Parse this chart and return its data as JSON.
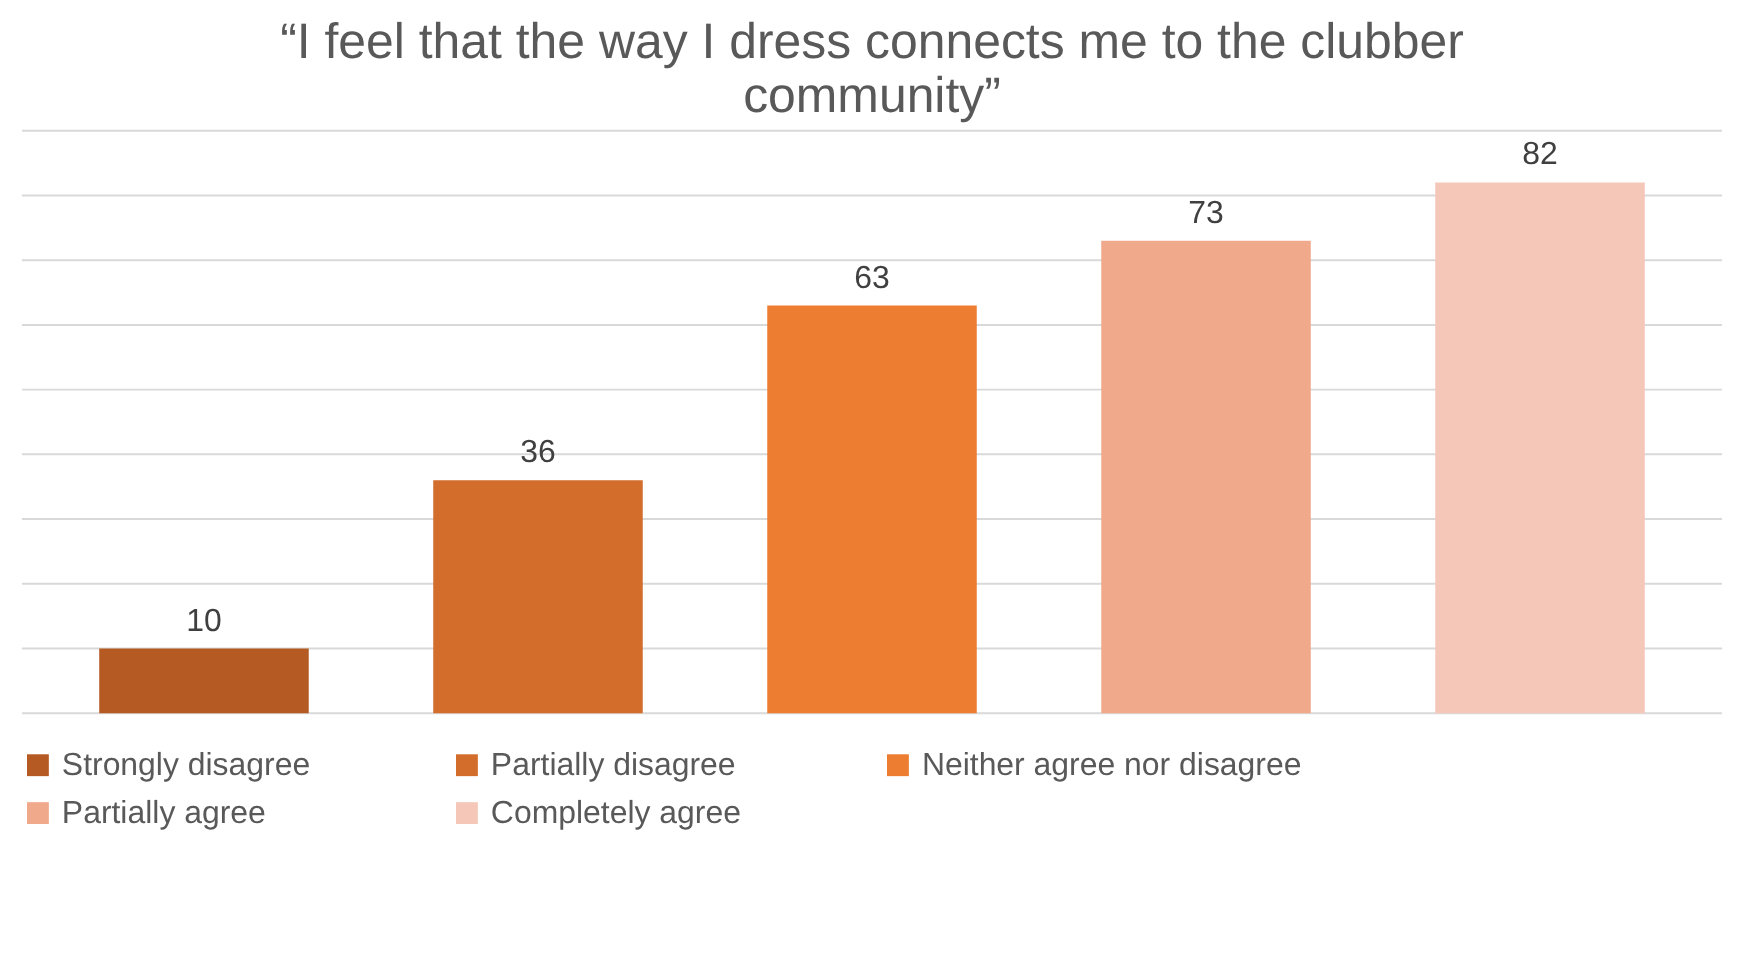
{
  "chart_data": {
    "type": "bar",
    "title": [
      "“I feel that the way I dress connects me to the clubber",
      "community”"
    ],
    "categories": [
      null,
      null,
      null,
      null,
      null
    ],
    "series": [
      {
        "name": "Strongly disagree",
        "color": "#b55a22",
        "values": [
          10,
          null,
          null,
          null,
          null
        ]
      },
      {
        "name": "Partially disagree",
        "color": "#d26d2b",
        "values": [
          null,
          36,
          null,
          null,
          null
        ]
      },
      {
        "name": "Neither agree nor disagree",
        "color": "#ed7d31",
        "values": [
          null,
          null,
          63,
          null,
          null
        ]
      },
      {
        "name": "Partially agree",
        "color": "#f0a98a",
        "values": [
          null,
          null,
          null,
          73,
          null
        ]
      },
      {
        "name": "Completely agree",
        "color": "#f5c7b8",
        "values": [
          null,
          null,
          null,
          null,
          82
        ]
      }
    ],
    "ylim": [
      0,
      90
    ],
    "yticks": [
      0,
      10,
      20,
      30,
      40,
      50,
      60,
      70,
      80,
      90
    ],
    "stacked": true,
    "grid": "y",
    "tick_labels": false,
    "legend": "bottom",
    "data_labels": true
  }
}
